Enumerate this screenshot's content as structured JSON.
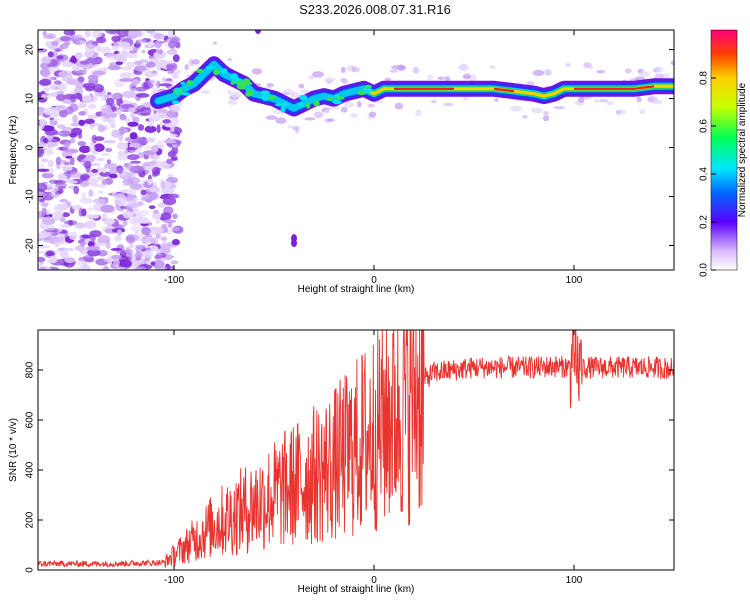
{
  "title": "S233.2026.008.07.31.R16",
  "colors": {
    "snr_line": "#e8332f",
    "ridge": "#ee1c1c",
    "axis": "#000000"
  },
  "chart_data": [
    {
      "type": "heatmap",
      "title": "S233.2026.008.07.31.R16",
      "xlabel": "Height of straight line (km)",
      "ylabel": "Frequency (Hz)",
      "xlim": [
        -168,
        150
      ],
      "ylim": [
        -25,
        24
      ],
      "x_ticks": [
        -100,
        0,
        100
      ],
      "y_ticks": [
        -20,
        -10,
        0,
        10,
        20
      ],
      "colorbar": {
        "label": "Normalized spectral amplitude",
        "range": [
          0,
          1
        ],
        "ticks": [
          "0.0",
          "0.2",
          "0.4",
          "0.6",
          "0.8"
        ]
      },
      "ridge": {
        "x": [
          -108,
          -100,
          -95,
          -90,
          -85,
          -80,
          -75,
          -70,
          -65,
          -60,
          -55,
          -50,
          -45,
          -40,
          -35,
          -30,
          -25,
          -20,
          -15,
          -10,
          -5,
          0,
          5,
          10,
          20,
          30,
          40,
          50,
          60,
          70,
          80,
          85,
          90,
          95,
          100,
          110,
          120,
          130,
          140,
          150
        ],
        "y": [
          9.5,
          10.5,
          12,
          13,
          15,
          17,
          15,
          14,
          13,
          11,
          10.5,
          10,
          9,
          8,
          9,
          10,
          10.5,
          10,
          11,
          11.5,
          12,
          11,
          12,
          12,
          12,
          12,
          12,
          12,
          12,
          11.5,
          11,
          10.5,
          11,
          12,
          12,
          12,
          12,
          12,
          12.5,
          12.5
        ]
      }
    },
    {
      "type": "line",
      "xlabel": "Height of straight line (km)",
      "ylabel": "SNR (10 * v/v)",
      "xlim": [
        -168,
        150
      ],
      "ylim": [
        0,
        960
      ],
      "x_ticks": [
        -100,
        0,
        100
      ],
      "y_ticks": [
        0,
        200,
        400,
        600,
        800
      ],
      "envelope": {
        "x": [
          -168,
          -130,
          -105,
          -100,
          -95,
          -90,
          -85,
          -80,
          -75,
          -70,
          -65,
          -60,
          -55,
          -50,
          -45,
          -40,
          -35,
          -30,
          -25,
          -20,
          -15,
          -10,
          -5,
          0,
          5,
          10,
          15,
          20,
          25,
          30,
          40,
          50,
          60,
          70,
          80,
          90,
          100,
          110,
          120,
          130,
          140,
          150
        ],
        "y": [
          25,
          25,
          30,
          60,
          90,
          120,
          150,
          180,
          200,
          220,
          240,
          260,
          280,
          300,
          320,
          340,
          360,
          380,
          400,
          420,
          450,
          480,
          520,
          560,
          600,
          640,
          680,
          720,
          760,
          790,
          800,
          810,
          810,
          810,
          810,
          815,
          810,
          810,
          810,
          810,
          810,
          805
        ]
      }
    }
  ]
}
